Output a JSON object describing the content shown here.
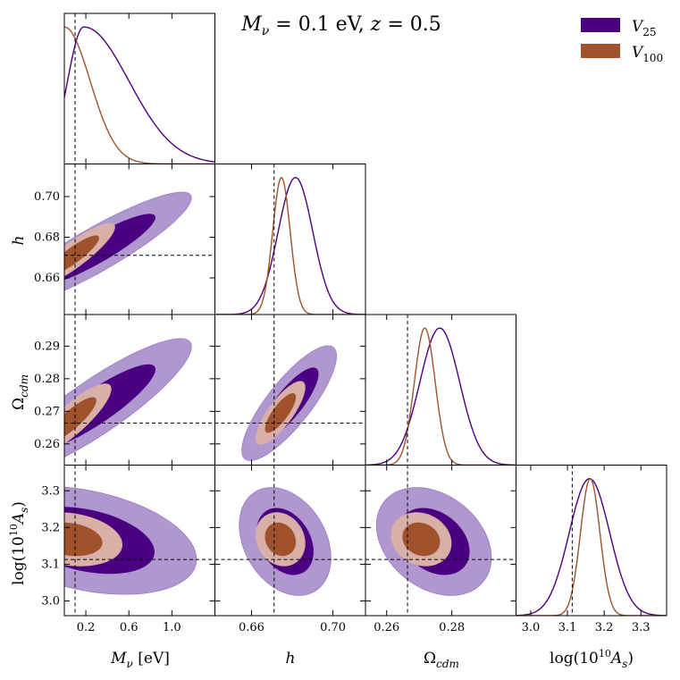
{
  "title": "Mν = 0.1 eV, z = 0.5",
  "colors": {
    "V25": "#4b0082",
    "V25_light": "#b197d0",
    "V100": "#a0522d",
    "V100_light": "#d9b0a8"
  },
  "legend": {
    "placement": "top-right",
    "entries": [
      {
        "name": "V25",
        "main": "V",
        "sub": "25",
        "color": "#4b0082"
      },
      {
        "name": "V100",
        "main": "V",
        "sub": "100",
        "color": "#a0522d"
      }
    ]
  },
  "chart_data": {
    "type": "corner",
    "parameters": [
      {
        "name": "Mν [eV]",
        "range": [
          0.0,
          1.4
        ],
        "ticks": [
          0.2,
          0.6,
          1.0
        ],
        "tick_labels": [
          "0.2",
          "0.6",
          "1.0"
        ],
        "truth": 0.1
      },
      {
        "name": "h",
        "range": [
          0.642,
          0.716
        ],
        "ticks": [
          0.66,
          0.7
        ],
        "tick_labels": [
          "0.66",
          "0.70"
        ],
        "truth": 0.6711
      },
      {
        "name": "Ωcdm",
        "range": [
          0.2535,
          0.2997
        ],
        "ticks": [
          0.26,
          0.28
        ],
        "tick_labels": [
          "0.26",
          "0.28"
        ],
        "truth": 0.2664
      },
      {
        "name": "log(10¹⁰As)",
        "range": [
          2.96,
          3.37
        ],
        "ticks": [
          3.0,
          3.1,
          3.2,
          3.3
        ],
        "tick_labels": [
          "3.0",
          "3.1",
          "3.2",
          "3.3"
        ],
        "truth": 3.113
      }
    ],
    "y_ticks": {
      "h": {
        "ticks": [
          0.66,
          0.68,
          0.7
        ],
        "tick_labels": [
          "0.66",
          "0.68",
          "0.70"
        ]
      },
      "Ωcdm": {
        "ticks": [
          0.26,
          0.27,
          0.28,
          0.29
        ],
        "tick_labels": [
          "0.26",
          "0.27",
          "0.28",
          "0.29"
        ]
      },
      "log(10¹⁰As)": {
        "ticks": [
          3.0,
          3.1,
          3.2,
          3.3
        ],
        "tick_labels": [
          "3.0",
          "3.1",
          "3.2",
          "3.3"
        ]
      }
    },
    "marginals": {
      "V25": [
        {
          "mean": 0.18,
          "sigma_left": 0.15,
          "sigma_right": 0.42
        },
        {
          "mean": 0.6816,
          "sigma": 0.0085
        },
        {
          "mean": 0.2763,
          "sigma": 0.0061
        },
        {
          "mean": 3.16,
          "sigma": 0.055
        }
      ],
      "V100": [
        {
          "mean": 0.0,
          "sigma_left": 0.15,
          "sigma_right": 0.24,
          "kind": "half"
        },
        {
          "mean": 0.6747,
          "sigma": 0.0043
        },
        {
          "mean": 0.2717,
          "sigma": 0.0032
        },
        {
          "mean": 3.162,
          "sigma": 0.0265
        }
      ]
    },
    "contours_2d": [
      {
        "x": 0,
        "y": 1,
        "V25": {
          "mx": 0.3,
          "my": 0.674,
          "sx": 0.36,
          "sy": 0.0115,
          "r": 0.9
        },
        "V100": {
          "mx": 0.08,
          "my": 0.671,
          "sx": 0.16,
          "sy": 0.0065,
          "r": 0.88
        }
      },
      {
        "x": 0,
        "y": 2,
        "V25": {
          "mx": 0.3,
          "my": 0.2715,
          "sx": 0.36,
          "sy": 0.0085,
          "r": 0.88
        },
        "V100": {
          "mx": 0.07,
          "my": 0.2675,
          "sx": 0.15,
          "sy": 0.0045,
          "r": 0.85
        }
      },
      {
        "x": 0,
        "y": 3,
        "V25": {
          "mx": 0.2,
          "my": 3.165,
          "sx": 0.42,
          "sy": 0.06,
          "r": -0.35
        },
        "V100": {
          "mx": 0.05,
          "my": 3.168,
          "sx": 0.2,
          "sy": 0.03,
          "r": -0.2
        }
      },
      {
        "x": 1,
        "y": 2,
        "V25": {
          "mx": 0.6785,
          "my": 0.2725,
          "sx": 0.0095,
          "sy": 0.0072,
          "r": 0.82
        },
        "V100": {
          "mx": 0.6742,
          "my": 0.2695,
          "sx": 0.005,
          "sy": 0.004,
          "r": 0.8
        }
      },
      {
        "x": 1,
        "y": 3,
        "V25": {
          "mx": 0.6765,
          "my": 3.162,
          "sx": 0.0092,
          "sy": 0.06,
          "r": -0.3
        },
        "V100": {
          "mx": 0.6742,
          "my": 3.168,
          "sx": 0.005,
          "sy": 0.03,
          "r": -0.15
        }
      },
      {
        "x": 2,
        "y": 3,
        "V25": {
          "mx": 0.2745,
          "my": 3.162,
          "sx": 0.0072,
          "sy": 0.06,
          "r": -0.3
        },
        "V100": {
          "mx": 0.2706,
          "my": 3.168,
          "sx": 0.0038,
          "sy": 0.03,
          "r": -0.15
        }
      }
    ],
    "contour_levels": [
      "68%",
      "95%"
    ]
  }
}
